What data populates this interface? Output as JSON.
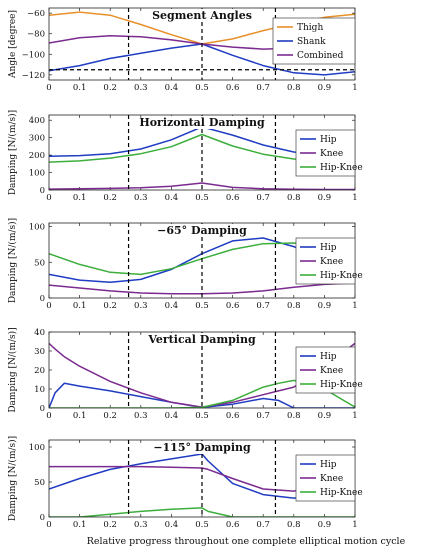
{
  "figure": {
    "xlabel": "Relative progress throughout one complete elliptical motion cycle"
  },
  "chart_data": [
    {
      "type": "line",
      "title": "Segment Angles",
      "ylabel": "Angle [degree]",
      "xlim": [
        0,
        1
      ],
      "ylim": [
        -125,
        -55
      ],
      "yticks": [
        -60,
        -80,
        -100,
        -120
      ],
      "xticks": [
        0,
        0.1,
        0.2,
        0.3,
        0.4,
        0.5,
        0.6,
        0.7,
        0.8,
        0.9,
        1
      ],
      "vlines": [
        0.26,
        0.5,
        0.74
      ],
      "hlines": [
        -115
      ],
      "legend": "right",
      "x": [
        0,
        0.1,
        0.2,
        0.3,
        0.4,
        0.5,
        0.6,
        0.7,
        0.8,
        0.9,
        1
      ],
      "series": [
        {
          "name": "Thigh",
          "color": "#e8902a",
          "values": [
            -62,
            -59,
            -62,
            -71,
            -81,
            -90,
            -85,
            -77,
            -70,
            -64,
            -61
          ]
        },
        {
          "name": "Shank",
          "color": "#1f3cc2",
          "values": [
            -116,
            -111,
            -104,
            -99,
            -94,
            -90,
            -101,
            -111,
            -118,
            -120,
            -117
          ]
        },
        {
          "name": "Combined",
          "color": "#7b2a8f",
          "values": [
            -89,
            -84,
            -82,
            -83,
            -86,
            -90,
            -93,
            -95,
            -94,
            -91,
            -90
          ]
        }
      ]
    },
    {
      "type": "line",
      "title": "Horizontal Damping",
      "ylabel": "Damping [N/(m/s)]",
      "xlim": [
        0,
        1
      ],
      "ylim": [
        0,
        430
      ],
      "yticks": [
        0,
        100,
        200,
        300,
        400
      ],
      "xticks": [
        0,
        0.1,
        0.2,
        0.3,
        0.4,
        0.5,
        0.6,
        0.7,
        0.8,
        0.9,
        1
      ],
      "vlines": [
        0.26,
        0.5,
        0.74
      ],
      "legend": "right",
      "x": [
        0,
        0.1,
        0.2,
        0.3,
        0.4,
        0.5,
        0.6,
        0.7,
        0.8,
        0.9,
        1
      ],
      "series": [
        {
          "name": "Hip",
          "color": "#1f3cc2",
          "values": [
            193,
            197,
            208,
            235,
            288,
            362,
            315,
            258,
            218,
            198,
            193
          ]
        },
        {
          "name": "Knee",
          "color": "#7b2a8f",
          "values": [
            5,
            7,
            9,
            13,
            22,
            40,
            15,
            7,
            4,
            3,
            3
          ]
        },
        {
          "name": "Hip-Knee",
          "color": "#3cae3c",
          "values": [
            160,
            167,
            183,
            208,
            248,
            318,
            252,
            205,
            178,
            166,
            162
          ]
        }
      ]
    },
    {
      "type": "line",
      "title": "−65° Damping",
      "ylabel": "Damping [N/(m/s)]",
      "xlim": [
        0,
        1
      ],
      "ylim": [
        0,
        105
      ],
      "yticks": [
        0,
        50,
        100
      ],
      "xticks": [
        0,
        0.1,
        0.2,
        0.3,
        0.4,
        0.5,
        0.6,
        0.7,
        0.8,
        0.9,
        1
      ],
      "vlines": [
        0.26,
        0.5,
        0.74
      ],
      "legend": "right",
      "x": [
        0,
        0.1,
        0.2,
        0.3,
        0.4,
        0.5,
        0.6,
        0.7,
        0.8,
        0.9,
        1
      ],
      "series": [
        {
          "name": "Hip",
          "color": "#1f3cc2",
          "values": [
            33,
            25,
            22,
            26,
            40,
            62,
            80,
            84,
            72,
            52,
            35
          ]
        },
        {
          "name": "Knee",
          "color": "#7b2a8f",
          "values": [
            18,
            14,
            10,
            7,
            6,
            6,
            7,
            10,
            15,
            19,
            21
          ]
        },
        {
          "name": "Hip-Knee",
          "color": "#3cae3c",
          "values": [
            62,
            47,
            36,
            33,
            41,
            55,
            68,
            76,
            77,
            71,
            61
          ]
        }
      ]
    },
    {
      "type": "line",
      "title": "Vertical Damping",
      "ylabel": "Damping [N/(m/s)]",
      "xlim": [
        0,
        1
      ],
      "ylim": [
        0,
        40
      ],
      "yticks": [
        0,
        10,
        20,
        30,
        40
      ],
      "xticks": [
        0,
        0.1,
        0.2,
        0.3,
        0.4,
        0.5,
        0.6,
        0.7,
        0.8,
        0.9,
        1
      ],
      "vlines": [
        0.26,
        0.5,
        0.74
      ],
      "legend": "right",
      "x": [
        0,
        0.02,
        0.05,
        0.1,
        0.2,
        0.3,
        0.4,
        0.5,
        0.6,
        0.7,
        0.75,
        0.8,
        0.9,
        1
      ],
      "series": [
        {
          "name": "Hip",
          "color": "#1f3cc2",
          "values": [
            0,
            8,
            13,
            11.5,
            9,
            6,
            3,
            0.3,
            2,
            5,
            4,
            0,
            0,
            0
          ]
        },
        {
          "name": "Knee",
          "color": "#7b2a8f",
          "values": [
            34,
            31,
            27,
            22,
            14,
            8,
            3,
            0.5,
            3,
            7,
            9,
            11,
            22,
            34
          ]
        },
        {
          "name": "Hip-Knee",
          "color": "#3cae3c",
          "values": [
            0,
            0,
            0,
            0,
            0,
            0,
            0,
            0.3,
            4,
            11,
            13,
            14.5,
            10,
            0.5
          ]
        }
      ]
    },
    {
      "type": "line",
      "title": "−115° Damping",
      "ylabel": "Damping [N/(m/s)]",
      "xlim": [
        0,
        1
      ],
      "ylim": [
        0,
        110
      ],
      "yticks": [
        0,
        50,
        100
      ],
      "xticks": [
        0,
        0.1,
        0.2,
        0.3,
        0.4,
        0.5,
        0.6,
        0.7,
        0.8,
        0.9,
        1
      ],
      "vlines": [
        0.26,
        0.5,
        0.74
      ],
      "legend": "right",
      "x": [
        0,
        0.1,
        0.2,
        0.3,
        0.4,
        0.5,
        0.52,
        0.6,
        0.7,
        0.8,
        0.9,
        1
      ],
      "series": [
        {
          "name": "Hip",
          "color": "#1f3cc2",
          "values": [
            40,
            55,
            68,
            76,
            83,
            90,
            80,
            48,
            32,
            27,
            30,
            39
          ]
        },
        {
          "name": "Knee",
          "color": "#7b2a8f",
          "values": [
            72,
            72,
            72,
            72,
            71,
            70,
            68,
            55,
            40,
            37,
            47,
            69
          ]
        },
        {
          "name": "Hip-Knee",
          "color": "#3cae3c",
          "values": [
            0,
            0,
            4,
            8,
            11,
            13,
            8,
            0,
            0,
            0,
            0,
            0
          ]
        }
      ]
    }
  ]
}
